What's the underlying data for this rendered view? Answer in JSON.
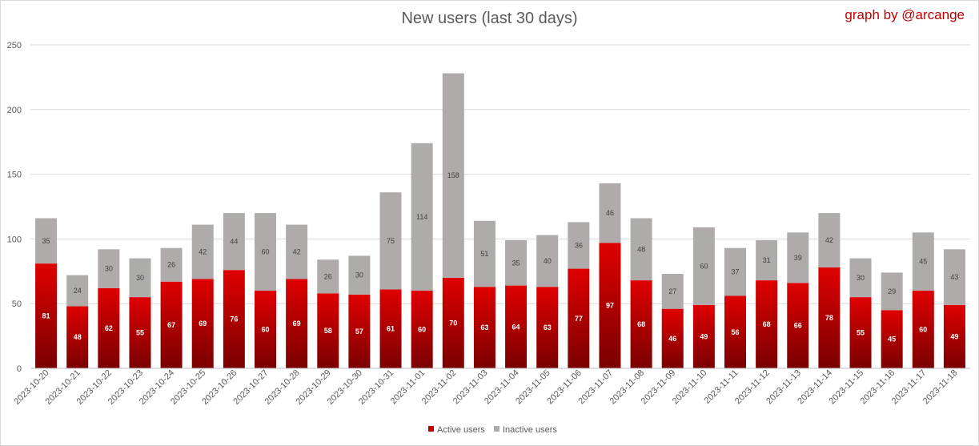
{
  "chart_data": {
    "type": "bar",
    "stacked": true,
    "title": "New users (last 30 days)",
    "credit": "graph by @arcange",
    "categories": [
      "2023-10-20",
      "2023-10-21",
      "2023-10-22",
      "2023-10-23",
      "2023-10-24",
      "2023-10-25",
      "2023-10-26",
      "2023-10-27",
      "2023-10-28",
      "2023-10-29",
      "2023-10-30",
      "2023-10-31",
      "2023-11-01",
      "2023-11-02",
      "2023-11-03",
      "2023-11-04",
      "2023-11-05",
      "2023-11-06",
      "2023-11-07",
      "2023-11-08",
      "2023-11-09",
      "2023-11-10",
      "2023-11-11",
      "2023-11-12",
      "2023-11-13",
      "2023-11-14",
      "2023-11-15",
      "2023-11-16",
      "2023-11-17",
      "2023-11-18"
    ],
    "series": [
      {
        "name": "Active users",
        "color": "#c00000",
        "values": [
          81,
          48,
          62,
          55,
          67,
          69,
          76,
          60,
          69,
          58,
          57,
          61,
          60,
          70,
          63,
          64,
          63,
          77,
          97,
          68,
          46,
          49,
          56,
          68,
          66,
          78,
          55,
          45,
          60,
          49
        ]
      },
      {
        "name": "Inactive users",
        "color": "#afabab",
        "values": [
          35,
          24,
          30,
          30,
          26,
          42,
          44,
          60,
          42,
          26,
          30,
          75,
          114,
          158,
          51,
          35,
          40,
          36,
          46,
          48,
          27,
          60,
          37,
          31,
          39,
          42,
          30,
          29,
          45,
          43
        ]
      }
    ],
    "ylim": [
      0,
      250
    ],
    "yticks": [
      0,
      50,
      100,
      150,
      200,
      250
    ],
    "grid": true,
    "legend_position": "bottom"
  }
}
